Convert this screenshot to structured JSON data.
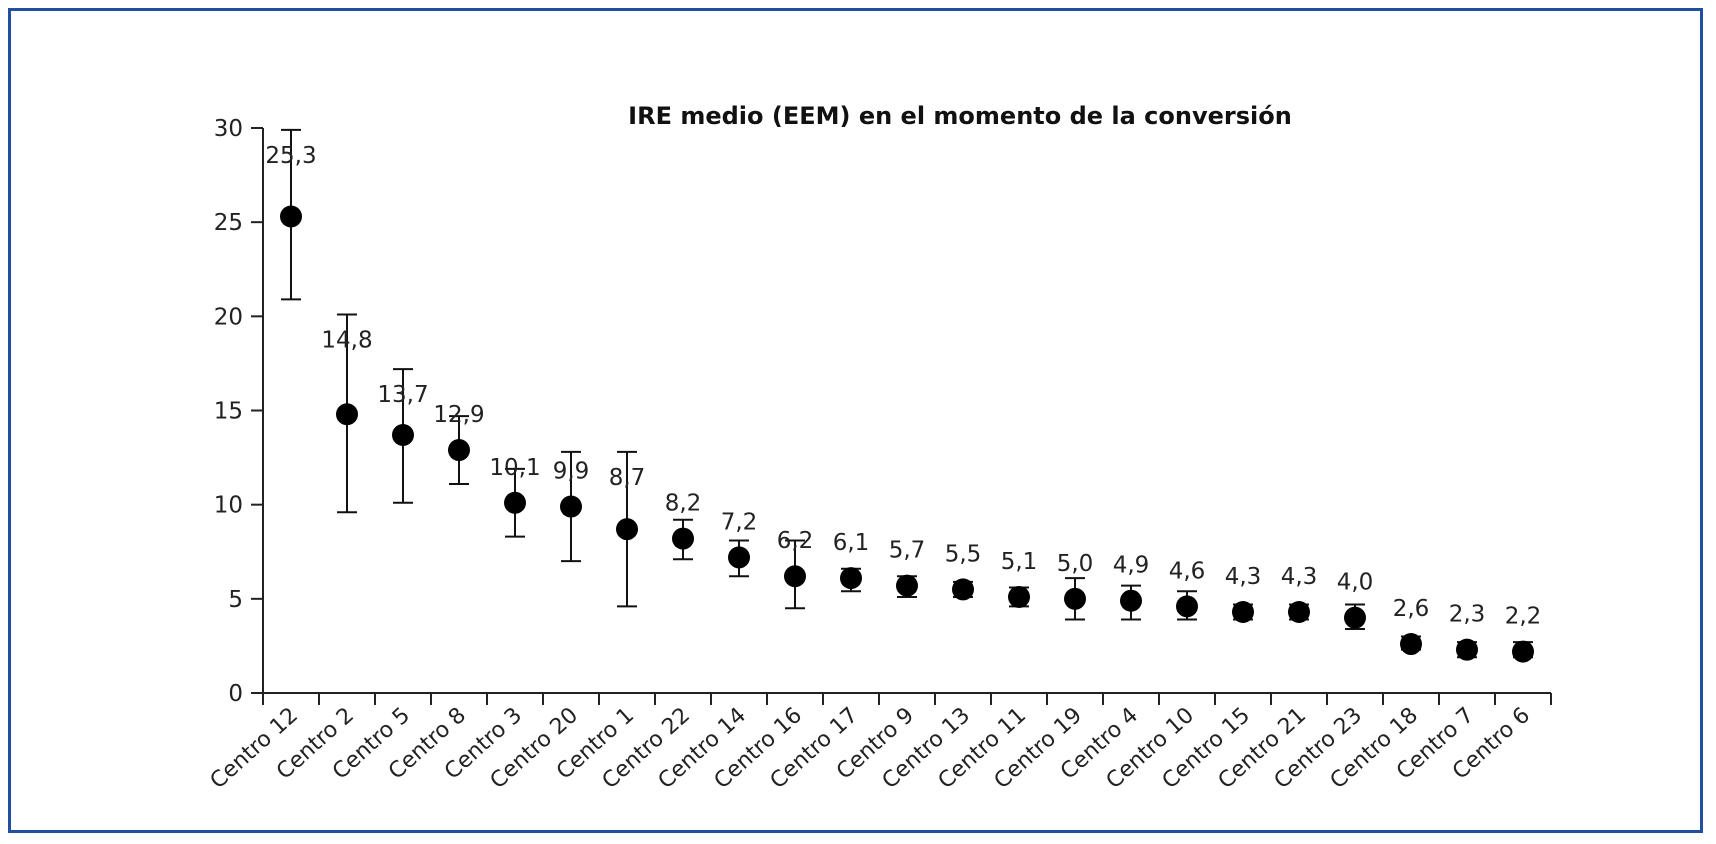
{
  "chart_data": {
    "type": "scatter",
    "title": "IRE medio (EEM) en el momento de la conversión",
    "xlabel": "",
    "ylabel": "",
    "ylim": [
      0,
      30
    ],
    "yticks": [
      "0",
      "5",
      "10",
      "15",
      "20",
      "25",
      "30"
    ],
    "grid": false,
    "legend": "none",
    "categories": [
      "Centro 12",
      "Centro 2",
      "Centro 5",
      "Centro 8",
      "Centro 3",
      "Centro 20",
      "Centro 1",
      "Centro 22",
      "Centro 14",
      "Centro 16",
      "Centro 17",
      "Centro 9",
      "Centro 13",
      "Centro 11",
      "Centro 19",
      "Centro 4",
      "Centro 10",
      "Centro 15",
      "Centro 21",
      "Centro 23",
      "Centro 18",
      "Centro 7",
      "Centro 6"
    ],
    "values": [
      25.3,
      14.8,
      13.7,
      12.9,
      10.1,
      9.9,
      8.7,
      8.2,
      7.2,
      6.2,
      6.1,
      5.7,
      5.5,
      5.1,
      5.0,
      4.9,
      4.6,
      4.3,
      4.3,
      4.0,
      2.6,
      2.3,
      2.2
    ],
    "labels": [
      "25,3",
      "14,8",
      "13,7",
      "12,9",
      "10,1",
      "9,9",
      "8,7",
      "8,2",
      "7,2",
      "6,2",
      "6,1",
      "5,7",
      "5,5",
      "5,1",
      "5,0",
      "4,9",
      "4,6",
      "4,3",
      "4,3",
      "4,0",
      "2,6",
      "2,3",
      "2,2"
    ],
    "error_upper": [
      29.9,
      20.1,
      17.2,
      14.7,
      11.9,
      12.8,
      12.8,
      9.2,
      8.1,
      8.1,
      6.6,
      6.2,
      5.9,
      5.6,
      6.1,
      5.7,
      5.4,
      4.7,
      4.7,
      4.7,
      3.0,
      2.7,
      2.7
    ],
    "error_lower": [
      20.9,
      9.6,
      10.1,
      11.1,
      8.3,
      7.0,
      4.6,
      7.1,
      6.2,
      4.5,
      5.4,
      5.1,
      5.1,
      4.6,
      3.9,
      3.9,
      3.9,
      3.9,
      3.9,
      3.4,
      2.3,
      1.9,
      1.9
    ],
    "colors": {
      "frame": "#1f4f9e",
      "marker": "#000000",
      "text": "#222222"
    }
  }
}
